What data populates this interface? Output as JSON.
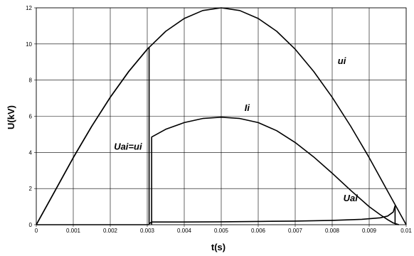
{
  "chart_data": {
    "type": "line",
    "title": "",
    "xlabel": "t(s)",
    "ylabel": "U(kV)",
    "xlim": [
      0,
      0.01
    ],
    "ylim": [
      0,
      12
    ],
    "grid": true,
    "legend": "none",
    "x_ticks": [
      "0",
      "0.001",
      "0.002",
      "0.003",
      "0.004",
      "0.005",
      "0.006",
      "0.007",
      "0.008",
      "0.009",
      "0.01"
    ],
    "y_ticks": [
      "0",
      "2",
      "4",
      "6",
      "8",
      "10",
      "12"
    ],
    "annotations": [
      {
        "text": "ui",
        "x": 0.00815,
        "y": 8.9
      },
      {
        "text": "Ii",
        "x": 0.00563,
        "y": 6.3
      },
      {
        "text": "Uai=ui",
        "x": 0.0021,
        "y": 4.15
      },
      {
        "text": "Uai",
        "x": 0.0083,
        "y": 1.3
      }
    ],
    "series": [
      {
        "values": [
          [
            0,
            0
          ],
          [
            0.0005,
            1.85
          ],
          [
            0.001,
            3.71
          ],
          [
            0.0015,
            5.45
          ],
          [
            0.002,
            7.05
          ],
          [
            0.0025,
            8.48
          ],
          [
            0.003,
            9.71
          ],
          [
            0.0035,
            10.7
          ],
          [
            0.004,
            11.41
          ],
          [
            0.0045,
            11.85
          ],
          [
            0.005,
            12.0
          ],
          [
            0.0055,
            11.85
          ],
          [
            0.006,
            11.41
          ],
          [
            0.0065,
            10.7
          ],
          [
            0.007,
            9.71
          ],
          [
            0.0075,
            8.48
          ],
          [
            0.008,
            7.05
          ],
          [
            0.0085,
            5.45
          ],
          [
            0.009,
            3.71
          ],
          [
            0.0095,
            1.85
          ],
          [
            0.01,
            0
          ]
        ]
      },
      {
        "values": [
          [
            0.00312,
            0
          ],
          [
            0.00312,
            4.85
          ],
          [
            0.0035,
            5.28
          ],
          [
            0.004,
            5.65
          ],
          [
            0.0045,
            5.88
          ],
          [
            0.005,
            5.95
          ],
          [
            0.0055,
            5.88
          ],
          [
            0.006,
            5.65
          ],
          [
            0.0065,
            5.2
          ],
          [
            0.007,
            4.55
          ],
          [
            0.0075,
            3.75
          ],
          [
            0.008,
            2.85
          ],
          [
            0.0085,
            1.9
          ],
          [
            0.009,
            1.0
          ],
          [
            0.0093,
            0.55
          ],
          [
            0.0095,
            0.28
          ],
          [
            0.00965,
            0.1
          ],
          [
            0.0098,
            0
          ]
        ]
      },
      {
        "values": [
          [
            0,
            0
          ],
          [
            0.0005,
            1.85
          ],
          [
            0.001,
            3.71
          ],
          [
            0.0015,
            5.45
          ],
          [
            0.002,
            7.05
          ],
          [
            0.0025,
            8.48
          ],
          [
            0.003,
            9.71
          ],
          [
            0.00305,
            9.81
          ],
          [
            0.00305,
            0.05
          ],
          [
            0.00312,
            0.15
          ],
          [
            0.004,
            0.15
          ],
          [
            0.005,
            0.16
          ],
          [
            0.006,
            0.18
          ],
          [
            0.007,
            0.2
          ],
          [
            0.008,
            0.24
          ],
          [
            0.0088,
            0.3
          ],
          [
            0.0093,
            0.38
          ],
          [
            0.0095,
            0.48
          ],
          [
            0.00965,
            0.7
          ],
          [
            0.0097,
            1.05
          ],
          [
            0.0097,
            0.05
          ],
          [
            0.0098,
            0
          ]
        ]
      },
      {
        "values": [
          [
            0,
            0
          ],
          [
            0.00305,
            0
          ]
        ]
      }
    ]
  }
}
